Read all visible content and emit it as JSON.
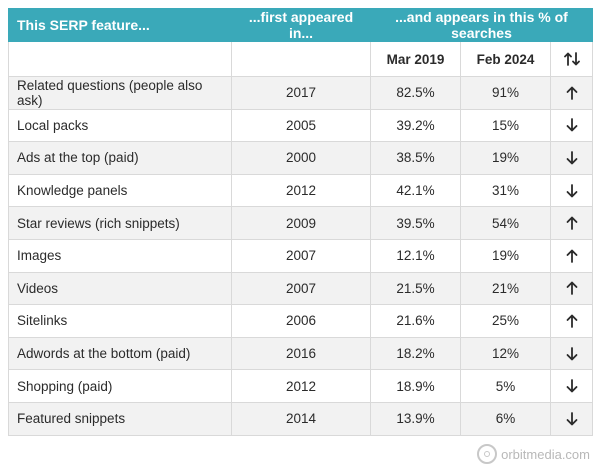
{
  "header": {
    "col_feature": "This SERP feature...",
    "col_first": "...first appeared in...",
    "col_percent": "...and appears in this % of searches"
  },
  "subheader": {
    "mar": "Mar 2019",
    "feb": "Feb 2024",
    "sort_icon": "up-down-arrows-icon"
  },
  "rows": [
    {
      "feature": "Related questions (people also ask)",
      "year": "2017",
      "mar": "82.5%",
      "feb": "91%",
      "trend": "up"
    },
    {
      "feature": "Local packs",
      "year": "2005",
      "mar": "39.2%",
      "feb": "15%",
      "trend": "down"
    },
    {
      "feature": "Ads at the top (paid)",
      "year": "2000",
      "mar": "38.5%",
      "feb": "19%",
      "trend": "down"
    },
    {
      "feature": "Knowledge panels",
      "year": "2012",
      "mar": "42.1%",
      "feb": "31%",
      "trend": "down"
    },
    {
      "feature": "Star reviews (rich snippets)",
      "year": "2009",
      "mar": "39.5%",
      "feb": "54%",
      "trend": "up"
    },
    {
      "feature": "Images",
      "year": "2007",
      "mar": "12.1%",
      "feb": "19%",
      "trend": "up"
    },
    {
      "feature": "Videos",
      "year": "2007",
      "mar": "21.5%",
      "feb": "21%",
      "trend": "up"
    },
    {
      "feature": "Sitelinks",
      "year": "2006",
      "mar": "21.6%",
      "feb": "25%",
      "trend": "up"
    },
    {
      "feature": "Adwords at the bottom (paid)",
      "year": "2016",
      "mar": "18.2%",
      "feb": "12%",
      "trend": "down"
    },
    {
      "feature": "Shopping (paid)",
      "year": "2012",
      "mar": "18.9%",
      "feb": "5%",
      "trend": "down"
    },
    {
      "feature": "Featured snippets",
      "year": "2014",
      "mar": "13.9%",
      "feb": "6%",
      "trend": "down"
    }
  ],
  "colors": {
    "header_bg": "#3aa9b9",
    "row_alt": "#f2f2f2",
    "border": "#d9d9d9"
  },
  "logo": {
    "text": "orbitmedia.com"
  }
}
